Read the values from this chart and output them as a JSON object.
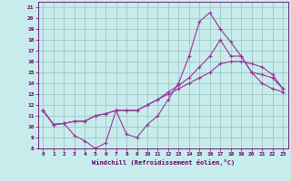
{
  "xlabel": "Windchill (Refroidissement éolien,°C)",
  "bg_color": "#c8ecec",
  "grid_color": "#9ec8c8",
  "line_color": "#993399",
  "xlim": [
    -0.5,
    23.5
  ],
  "ylim": [
    8,
    21.5
  ],
  "xticks": [
    0,
    1,
    2,
    3,
    4,
    5,
    6,
    7,
    8,
    9,
    10,
    11,
    12,
    13,
    14,
    15,
    16,
    17,
    18,
    19,
    20,
    21,
    22,
    23
  ],
  "yticks": [
    8,
    9,
    10,
    11,
    12,
    13,
    14,
    15,
    16,
    17,
    18,
    19,
    20,
    21
  ],
  "line1_x": [
    0,
    1,
    2,
    3,
    4,
    5,
    6,
    7,
    8,
    9,
    10,
    11,
    12,
    13,
    14,
    15,
    16,
    17,
    18,
    19,
    20,
    21,
    22,
    23
  ],
  "line1_y": [
    11.5,
    10.2,
    10.3,
    10.5,
    10.5,
    11.0,
    11.2,
    11.5,
    11.5,
    11.5,
    12.0,
    12.5,
    13.0,
    13.5,
    14.0,
    14.5,
    15.0,
    15.8,
    16.0,
    16.0,
    15.8,
    15.5,
    14.8,
    13.5
  ],
  "line2_x": [
    0,
    1,
    2,
    3,
    4,
    5,
    6,
    7,
    8,
    9,
    10,
    11,
    12,
    13,
    14,
    15,
    16,
    17,
    18,
    19,
    20,
    21,
    22,
    23
  ],
  "line2_y": [
    11.5,
    10.2,
    10.3,
    9.2,
    8.7,
    8.0,
    8.5,
    11.5,
    9.3,
    9.0,
    10.2,
    11.0,
    12.5,
    14.0,
    16.5,
    19.7,
    20.5,
    19.0,
    17.8,
    16.5,
    15.0,
    14.0,
    13.5,
    13.2
  ],
  "line3_x": [
    0,
    1,
    2,
    3,
    4,
    5,
    6,
    7,
    8,
    9,
    10,
    11,
    12,
    13,
    14,
    15,
    16,
    17,
    18,
    19,
    20,
    21,
    22,
    23
  ],
  "line3_y": [
    11.5,
    10.2,
    10.3,
    10.5,
    10.5,
    11.0,
    11.2,
    11.5,
    11.5,
    11.5,
    12.0,
    12.5,
    13.2,
    13.8,
    14.5,
    15.5,
    16.5,
    18.0,
    16.5,
    16.5,
    15.0,
    14.8,
    14.5,
    13.5
  ]
}
